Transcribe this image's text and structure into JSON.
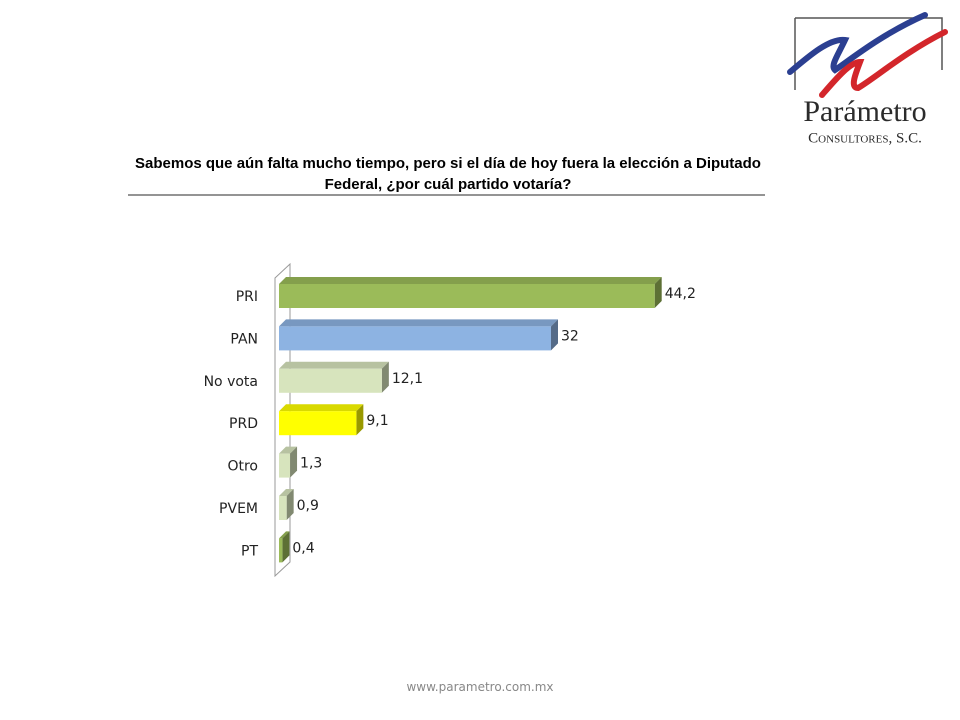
{
  "chart_data": {
    "type": "bar",
    "orientation": "horizontal",
    "title": "Sabemos que aún falta mucho tiempo, pero si el día de hoy fuera la elección a Diputado Federal, ¿por cuál partido votaría?",
    "categories": [
      "PRI",
      "PAN",
      "No vota",
      "PRD",
      "Otro",
      "PVEM",
      "PT"
    ],
    "values": [
      44.2,
      32,
      12.1,
      9.1,
      1.3,
      0.9,
      0.4
    ],
    "value_labels": [
      "44,2",
      "32",
      "12,1",
      "9,1",
      "1,3",
      "0,9",
      "0,4"
    ],
    "colors": [
      "#9bbb59",
      "#8db3e2",
      "#d7e4bd",
      "#ffff00",
      "#d7e4bd",
      "#d7e4bd",
      "#9bbb59"
    ]
  },
  "logo": {
    "name": "Parámetro",
    "subtitle": "Consultores, S.C."
  },
  "footer": "www.parametro.com.mx"
}
